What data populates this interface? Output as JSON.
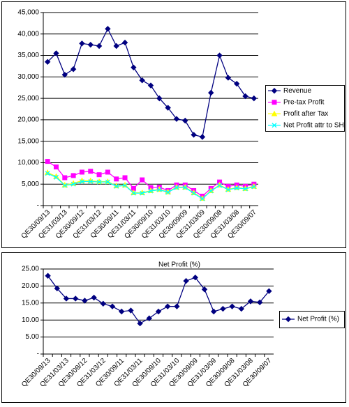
{
  "chart_data": [
    {
      "type": "line",
      "categories": [
        "QE30/09/13",
        null,
        "QE31/03/13",
        null,
        "QE30/09/12",
        null,
        "QE31/03/12",
        null,
        "QE30/09/11",
        null,
        "QE31/03/11",
        null,
        "QE30/09/10",
        null,
        "QE31/03/10",
        null,
        "QE30/09/09",
        null,
        "QE31/03/09",
        null,
        "QE30/09/08",
        null,
        "QE31/03/08",
        null,
        "QE30/09/07"
      ],
      "series": [
        {
          "name": "Revenue",
          "color": "#000080",
          "marker": "diamond",
          "values": [
            33500,
            35500,
            30500,
            31800,
            37800,
            37500,
            37200,
            41200,
            37200,
            38000,
            32200,
            29200,
            28000,
            25000,
            22800,
            20200,
            19800,
            16500,
            16000,
            26300,
            35000,
            29800,
            28400,
            25500,
            25000
          ]
        },
        {
          "name": "Pre-tax Profit",
          "color": "#ff00ff",
          "marker": "square",
          "values": [
            10300,
            9000,
            6500,
            7000,
            7800,
            8000,
            7200,
            7800,
            6200,
            6500,
            4000,
            6000,
            4200,
            4300,
            3500,
            4800,
            4800,
            3500,
            2200,
            4000,
            5500,
            4500,
            4800,
            4500,
            5000
          ]
        },
        {
          "name": "Profit after Tax",
          "color": "#ffff00",
          "marker": "triangle",
          "values": [
            7700,
            6800,
            4800,
            5200,
            5800,
            5800,
            5600,
            5600,
            4600,
            4800,
            3000,
            3000,
            3500,
            3800,
            3200,
            4300,
            4300,
            3000,
            1700,
            3500,
            4800,
            3800,
            4200,
            4000,
            4500
          ]
        },
        {
          "name": "Net Profit attr to SH",
          "color": "#00ffff",
          "marker": "x",
          "values": [
            7500,
            6600,
            4700,
            5000,
            5600,
            5600,
            5500,
            5500,
            4500,
            4700,
            2900,
            2900,
            3400,
            3700,
            3100,
            4200,
            4200,
            2900,
            1600,
            3400,
            4700,
            3700,
            4100,
            3900,
            4400
          ]
        }
      ],
      "ylim": [
        0,
        45000
      ],
      "yticks": [
        {
          "value": 0,
          "label": "-"
        },
        {
          "value": 5000,
          "label": "5,000"
        },
        {
          "value": 10000,
          "label": "10,000"
        },
        {
          "value": 15000,
          "label": "15,000"
        },
        {
          "value": 20000,
          "label": "20,000"
        },
        {
          "value": 25000,
          "label": "25,000"
        },
        {
          "value": 30000,
          "label": "30,000"
        },
        {
          "value": 35000,
          "label": "35,000"
        },
        {
          "value": 40000,
          "label": "40,000"
        },
        {
          "value": 45000,
          "label": "45,000"
        }
      ],
      "grid": true,
      "legend": "right"
    },
    {
      "type": "line",
      "title": "Net Profit (%)",
      "categories": [
        "QE30/09/13",
        null,
        "QE31/03/13",
        null,
        "QE30/09/12",
        null,
        "QE31/03/12",
        null,
        "QE30/09/11",
        null,
        "QE31/03/11",
        null,
        "QE30/09/10",
        null,
        "QE31/03/10",
        null,
        "QE30/09/09",
        null,
        "QE31/03/09",
        null,
        "QE30/09/08",
        null,
        "QE31/03/08",
        null,
        "QE30/09/07"
      ],
      "series": [
        {
          "name": "Net Profit (%)",
          "color": "#000080",
          "marker": "diamond",
          "values": [
            23,
            19.3,
            16.3,
            16.3,
            15.7,
            16.6,
            14.8,
            14,
            12.5,
            12.8,
            9,
            10.5,
            12.5,
            14,
            14,
            21.5,
            22.5,
            19,
            12.5,
            13.3,
            14,
            13.3,
            15.5,
            15.2,
            18.5
          ]
        }
      ],
      "ylim": [
        0,
        25
      ],
      "yticks": [
        {
          "value": 0,
          "label": "-"
        },
        {
          "value": 5,
          "label": "5.00"
        },
        {
          "value": 10,
          "label": "10.00"
        },
        {
          "value": 15,
          "label": "15.00"
        },
        {
          "value": 20,
          "label": "20.00"
        },
        {
          "value": 25,
          "label": "25.00"
        }
      ],
      "grid": true,
      "legend": "right"
    }
  ]
}
